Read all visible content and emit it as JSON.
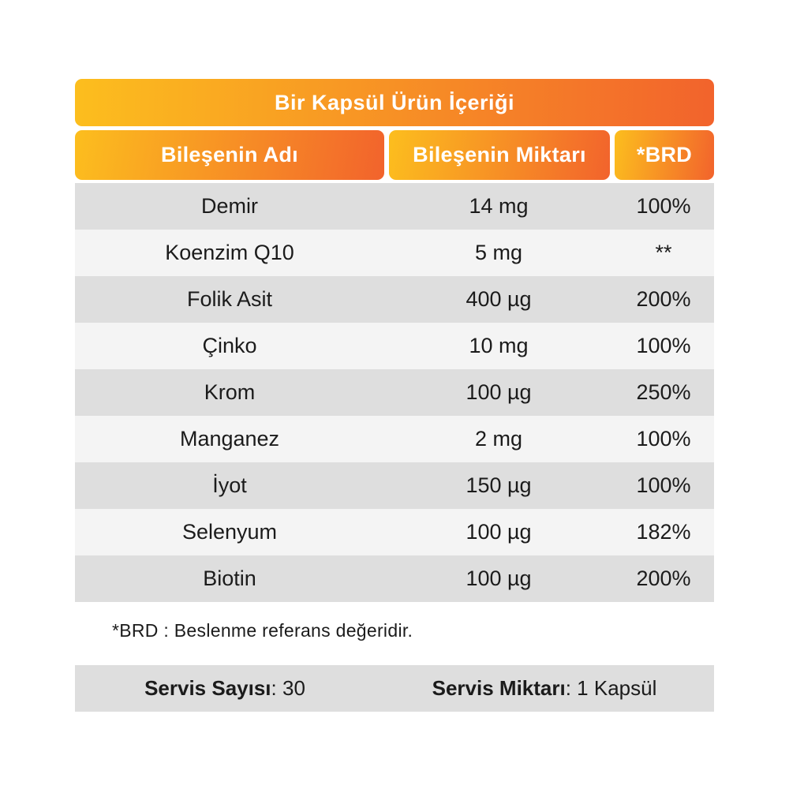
{
  "title": "Bir Kapsül Ürün İçeriği",
  "columns": [
    {
      "label": "Bileşenin Adı"
    },
    {
      "label": "Bileşenin Miktarı"
    },
    {
      "label": "*BRD"
    }
  ],
  "rows": [
    {
      "name": "Demir",
      "amount": "14 mg",
      "brd": "100%"
    },
    {
      "name": "Koenzim Q10",
      "amount": "5 mg",
      "brd": "**"
    },
    {
      "name": "Folik Asit",
      "amount": "400 µg",
      "brd": "200%"
    },
    {
      "name": "Çinko",
      "amount": "10 mg",
      "brd": "100%"
    },
    {
      "name": "Krom",
      "amount": "100 µg",
      "brd": "250%"
    },
    {
      "name": "Manganez",
      "amount": "2 mg",
      "brd": "100%"
    },
    {
      "name": "İyot",
      "amount": "150 µg",
      "brd": "100%"
    },
    {
      "name": "Selenyum",
      "amount": "100 µg",
      "brd": "182%"
    },
    {
      "name": "Biotin",
      "amount": "100 µg",
      "brd": "200%"
    }
  ],
  "footnote": "*BRD : Beslenme referans değeridir.",
  "serving": {
    "count_label": "Servis Sayısı",
    "count_value": ": 30",
    "amount_label": "Servis Miktarı",
    "amount_value": ": 1 Kapsül"
  },
  "colors": {
    "gradient_start": "#FCBE1E",
    "gradient_end": "#F2632C",
    "row_dark": "#DEDEDE",
    "row_light": "#F4F4F4"
  }
}
